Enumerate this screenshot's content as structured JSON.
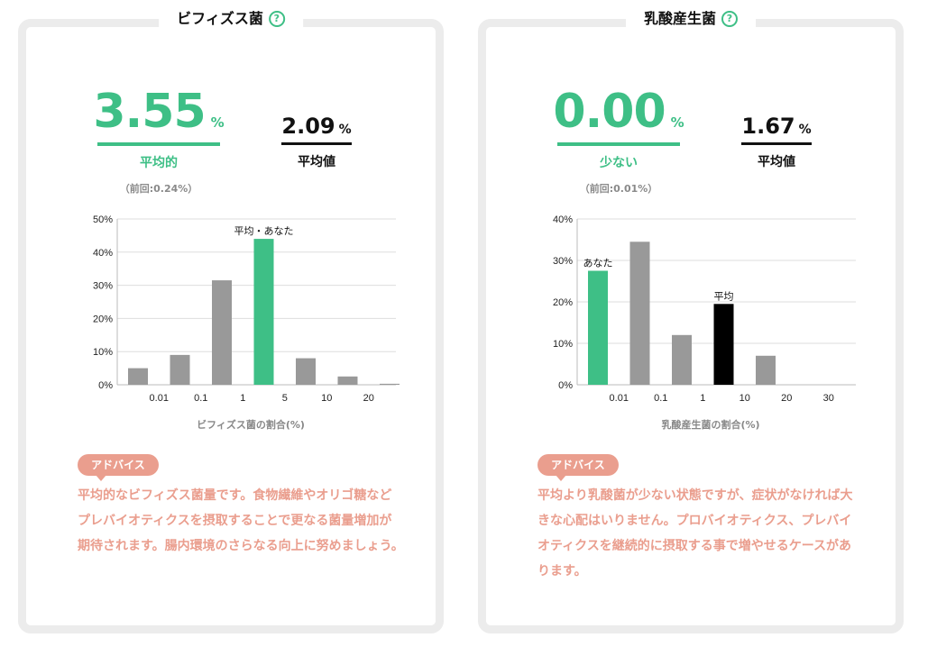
{
  "colors": {
    "accent": "#3ebf86",
    "bar_gray": "#999999",
    "bar_black": "#000000",
    "advice": "#ea9e8e",
    "border": "#ececec"
  },
  "cards": [
    {
      "title": "ビフィズス菌",
      "help_icon": "?",
      "value": "3.55",
      "unit": "%",
      "status": "平均的",
      "previous": "（前回:0.24%）",
      "avg_value": "2.09",
      "avg_unit": "%",
      "avg_label": "平均値",
      "advice_label": "アドバイス",
      "advice_text": "平均的なビフィズス菌量です。食物繊維やオリゴ糖などプレバイオティクスを摂取することで更なる菌量増加が期待されます。腸内環境のさらなる向上に努めましょう。"
    },
    {
      "title": "乳酸産生菌",
      "help_icon": "?",
      "value": "0.00",
      "unit": "%",
      "status": "少ない",
      "previous": "（前回:0.01%）",
      "avg_value": "1.67",
      "avg_unit": "%",
      "avg_label": "平均値",
      "advice_label": "アドバイス",
      "advice_text": "平均より乳酸菌が少ない状態ですが、症状がなければ大きな心配はいりません。プロバイオティクス、プレバイオティクスを継続的に摂取する事で増やせるケースがあります。"
    }
  ],
  "chart_data": [
    {
      "type": "bar",
      "xlabel": "ビフィズス菌の割合(%)",
      "ylabel": "",
      "ylim": [
        0,
        50
      ],
      "y_ticks": [
        "0%",
        "10%",
        "20%",
        "30%",
        "40%",
        "50%"
      ],
      "y_tick_values": [
        0,
        10,
        20,
        30,
        40,
        50
      ],
      "x_tick_labels": [
        "0.01",
        "0.1",
        "1",
        "5",
        "10",
        "20"
      ],
      "values": [
        5,
        9,
        31.5,
        44,
        8,
        2.5,
        0.3
      ],
      "bar_colors": [
        "gray",
        "gray",
        "gray",
        "accent",
        "gray",
        "gray",
        "gray"
      ],
      "annotations": [
        {
          "bar": 3,
          "text": "平均・あなた"
        }
      ],
      "grid": true
    },
    {
      "type": "bar",
      "xlabel": "乳酸産生菌の割合(%)",
      "ylabel": "",
      "ylim": [
        0,
        40
      ],
      "y_ticks": [
        "0%",
        "10%",
        "20%",
        "30%",
        "40%"
      ],
      "y_tick_values": [
        0,
        10,
        20,
        30,
        40
      ],
      "x_tick_labels": [
        "0.01",
        "0.1",
        "1",
        "10",
        "20",
        "30"
      ],
      "values": [
        27.5,
        34.5,
        12,
        19.5,
        7,
        0,
        0
      ],
      "bar_colors": [
        "accent",
        "gray",
        "gray",
        "black",
        "gray",
        "gray",
        "gray"
      ],
      "annotations": [
        {
          "bar": 0,
          "text": "あなた"
        },
        {
          "bar": 3,
          "text": "平均"
        }
      ],
      "grid": true
    }
  ]
}
